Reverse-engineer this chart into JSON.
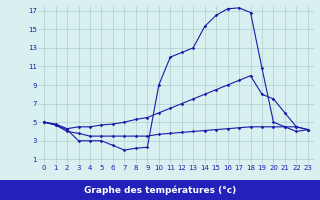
{
  "x": [
    0,
    1,
    2,
    3,
    4,
    5,
    6,
    7,
    8,
    9,
    10,
    11,
    12,
    13,
    14,
    15,
    16,
    17,
    18,
    19,
    20,
    21,
    22,
    23
  ],
  "line1": [
    5.0,
    4.7,
    4.2,
    3.0,
    3.0,
    3.0,
    2.5,
    2.0,
    2.2,
    2.3,
    9.0,
    12.0,
    12.5,
    13.0,
    15.3,
    16.5,
    17.2,
    17.3,
    16.8,
    10.8,
    5.0,
    4.5,
    4.0,
    4.2
  ],
  "line2": [
    5.0,
    4.8,
    4.3,
    4.5,
    4.5,
    4.7,
    4.8,
    5.0,
    5.3,
    5.5,
    6.0,
    6.5,
    7.0,
    7.5,
    8.0,
    8.5,
    9.0,
    9.5,
    10.0,
    8.0,
    7.5,
    6.0,
    4.5,
    4.2
  ],
  "line3": [
    5.0,
    4.7,
    4.0,
    3.8,
    3.5,
    3.5,
    3.5,
    3.5,
    3.5,
    3.5,
    3.7,
    3.8,
    3.9,
    4.0,
    4.1,
    4.2,
    4.3,
    4.4,
    4.5,
    4.5,
    4.5,
    4.5,
    4.5,
    4.2
  ],
  "line_color": "#1a1aaa",
  "bg_color": "#d8f0f0",
  "grid_color": "#aacfcf",
  "xlabel": "Graphe des températures (°c)",
  "xlabel_bg": "#2222bb",
  "xlim": [
    -0.5,
    23.5
  ],
  "ylim": [
    0.5,
    17.5
  ],
  "xticks": [
    0,
    1,
    2,
    3,
    4,
    5,
    6,
    7,
    8,
    9,
    10,
    11,
    12,
    13,
    14,
    15,
    16,
    17,
    18,
    19,
    20,
    21,
    22,
    23
  ],
  "yticks": [
    1,
    3,
    5,
    7,
    9,
    11,
    13,
    15,
    17
  ],
  "tick_fontsize": 5,
  "ylabel_fontsize": 5
}
